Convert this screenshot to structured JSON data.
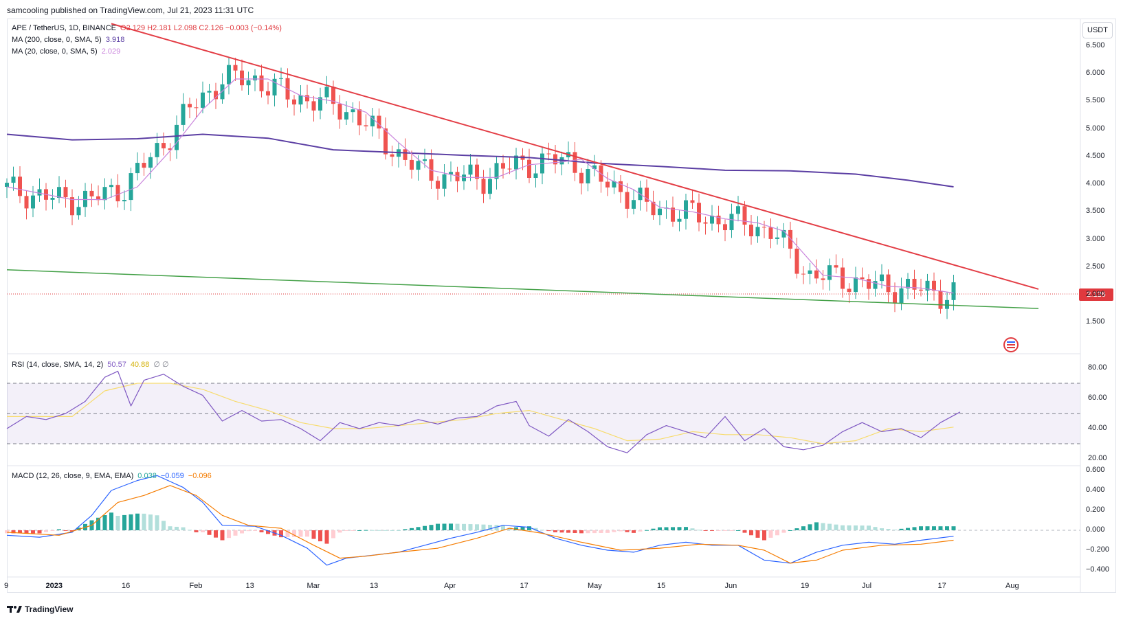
{
  "header": {
    "text": "samcooling published on TradingView.com, Jul 21, 2023 11:31 UTC"
  },
  "legend": {
    "symbol": "APE / TetherUS, 1D, BINANCE",
    "ohlc": "O2.129  H2.181  L2.098  C2.126  −0.003 (−0.14%)",
    "ma200_label": "MA (200, close, 0, SMA, 5)",
    "ma200_value": "3.918",
    "ma20_label": "MA (20, close, 0, SMA, 5)",
    "ma20_value": "2.029",
    "rsi_label": "RSI (14, close, SMA, 14, 2)",
    "rsi_value": "50.57",
    "rsi_ma_value": "40.88",
    "rsi_extra": "∅ ∅",
    "macd_label": "MACD (12, 26, close, 9, EMA, EMA)",
    "macd_hist": "0.038",
    "macd_line": "−0.059",
    "macd_signal": "−0.096"
  },
  "unit_button": "USDT",
  "last_price": "2.126",
  "branding": "TradingView",
  "colors": {
    "up": "#26a69a",
    "down": "#ef5350",
    "ma200": "#5b3ea3",
    "ma20": "#c983dc",
    "trend": "#e33d45",
    "support": "#43a047",
    "rsi": "#7e57c2",
    "rsi_ma": "#f7dc6f",
    "macd": "#2962ff",
    "signal": "#f57c00"
  },
  "chart_data": {
    "type": "candlestick",
    "price_axis": [
      "6.500",
      "6.000",
      "5.500",
      "5.000",
      "4.500",
      "4.000",
      "3.500",
      "3.000",
      "2.500",
      "2.000",
      "1.500"
    ],
    "rsi_axis": [
      "80.00",
      "60.00",
      "40.00",
      "20.00"
    ],
    "macd_axis": [
      "0.600",
      "0.400",
      "0.200",
      "0.000",
      "−0.200",
      "−0.400"
    ],
    "time_axis": [
      "9",
      "2023",
      "16",
      "Feb",
      "13",
      "Mar",
      "13",
      "Apr",
      "17",
      "May",
      "15",
      "Jun",
      "19",
      "Jul",
      "17",
      "Aug"
    ],
    "ma200": [
      [
        0,
        4.9
      ],
      [
        10,
        4.8
      ],
      [
        20,
        4.82
      ],
      [
        30,
        4.9
      ],
      [
        40,
        4.83
      ],
      [
        50,
        4.62
      ],
      [
        60,
        4.57
      ],
      [
        70,
        4.52
      ],
      [
        80,
        4.48
      ],
      [
        90,
        4.38
      ],
      [
        100,
        4.32
      ],
      [
        110,
        4.25
      ],
      [
        120,
        4.24
      ],
      [
        130,
        4.18
      ],
      [
        138,
        4.07
      ],
      [
        145,
        3.95
      ]
    ],
    "ma20": [
      [
        0,
        3.95
      ],
      [
        10,
        3.72
      ],
      [
        15,
        3.72
      ],
      [
        20,
        3.95
      ],
      [
        25,
        4.6
      ],
      [
        30,
        5.35
      ],
      [
        35,
        5.9
      ],
      [
        40,
        5.9
      ],
      [
        45,
        5.6
      ],
      [
        50,
        5.5
      ],
      [
        55,
        5.3
      ],
      [
        60,
        4.75
      ],
      [
        65,
        4.25
      ],
      [
        70,
        4.12
      ],
      [
        75,
        4.12
      ],
      [
        80,
        4.35
      ],
      [
        85,
        4.4
      ],
      [
        88,
        4.45
      ],
      [
        92,
        4.1
      ],
      [
        96,
        3.9
      ],
      [
        100,
        3.58
      ],
      [
        105,
        3.5
      ],
      [
        110,
        3.37
      ],
      [
        115,
        3.3
      ],
      [
        119,
        3.15
      ],
      [
        122,
        2.75
      ],
      [
        125,
        2.35
      ],
      [
        130,
        2.3
      ],
      [
        135,
        2.15
      ],
      [
        140,
        2.12
      ],
      [
        145,
        2.03
      ]
    ],
    "trendline": [
      [
        16,
        6.9
      ],
      [
        158,
        2.1
      ]
    ],
    "support": [
      [
        0,
        2.45
      ],
      [
        158,
        1.75
      ]
    ],
    "rsi": [
      [
        0,
        40
      ],
      [
        3,
        48
      ],
      [
        6,
        46
      ],
      [
        9,
        50
      ],
      [
        12,
        58
      ],
      [
        15,
        74
      ],
      [
        17,
        78
      ],
      [
        19,
        55
      ],
      [
        21,
        72
      ],
      [
        24,
        76
      ],
      [
        27,
        68
      ],
      [
        30,
        62
      ],
      [
        33,
        45
      ],
      [
        36,
        52
      ],
      [
        39,
        45
      ],
      [
        42,
        46
      ],
      [
        45,
        40
      ],
      [
        48,
        32
      ],
      [
        51,
        44
      ],
      [
        54,
        40
      ],
      [
        57,
        44
      ],
      [
        60,
        42
      ],
      [
        63,
        46
      ],
      [
        66,
        43
      ],
      [
        69,
        47
      ],
      [
        72,
        48
      ],
      [
        75,
        55
      ],
      [
        78,
        58
      ],
      [
        80,
        42
      ],
      [
        83,
        35
      ],
      [
        86,
        46
      ],
      [
        89,
        38
      ],
      [
        92,
        28
      ],
      [
        95,
        24
      ],
      [
        98,
        36
      ],
      [
        101,
        42
      ],
      [
        104,
        38
      ],
      [
        107,
        34
      ],
      [
        110,
        48
      ],
      [
        113,
        32
      ],
      [
        116,
        40
      ],
      [
        119,
        28
      ],
      [
        122,
        26
      ],
      [
        125,
        29
      ],
      [
        128,
        38
      ],
      [
        131,
        44
      ],
      [
        134,
        38
      ],
      [
        137,
        40
      ],
      [
        140,
        34
      ],
      [
        143,
        44
      ],
      [
        146,
        51
      ]
    ],
    "rsi_ma": [
      [
        0,
        48
      ],
      [
        10,
        48
      ],
      [
        15,
        65
      ],
      [
        20,
        70
      ],
      [
        25,
        70
      ],
      [
        30,
        66
      ],
      [
        35,
        58
      ],
      [
        40,
        52
      ],
      [
        45,
        44
      ],
      [
        50,
        40
      ],
      [
        55,
        40
      ],
      [
        60,
        42
      ],
      [
        65,
        44
      ],
      [
        70,
        46
      ],
      [
        75,
        50
      ],
      [
        80,
        52
      ],
      [
        85,
        46
      ],
      [
        90,
        40
      ],
      [
        95,
        32
      ],
      [
        100,
        33
      ],
      [
        105,
        38
      ],
      [
        110,
        36
      ],
      [
        115,
        36
      ],
      [
        120,
        34
      ],
      [
        125,
        30
      ],
      [
        130,
        32
      ],
      [
        135,
        40
      ],
      [
        140,
        38
      ],
      [
        145,
        41
      ]
    ],
    "macd": [
      [
        0,
        -0.05
      ],
      [
        5,
        -0.07
      ],
      [
        10,
        -0.02
      ],
      [
        13,
        0.15
      ],
      [
        16,
        0.4
      ],
      [
        20,
        0.5
      ],
      [
        23,
        0.55
      ],
      [
        27,
        0.43
      ],
      [
        30,
        0.28
      ],
      [
        33,
        0.05
      ],
      [
        38,
        0.04
      ],
      [
        42,
        -0.05
      ],
      [
        46,
        -0.18
      ],
      [
        49,
        -0.35
      ],
      [
        52,
        -0.28
      ],
      [
        56,
        -0.25
      ],
      [
        60,
        -0.22
      ],
      [
        64,
        -0.15
      ],
      [
        68,
        -0.08
      ],
      [
        72,
        -0.02
      ],
      [
        76,
        0.05
      ],
      [
        80,
        0.03
      ],
      [
        84,
        -0.08
      ],
      [
        88,
        -0.15
      ],
      [
        92,
        -0.2
      ],
      [
        96,
        -0.22
      ],
      [
        100,
        -0.15
      ],
      [
        104,
        -0.12
      ],
      [
        108,
        -0.15
      ],
      [
        112,
        -0.15
      ],
      [
        116,
        -0.3
      ],
      [
        120,
        -0.33
      ],
      [
        124,
        -0.22
      ],
      [
        128,
        -0.15
      ],
      [
        132,
        -0.12
      ],
      [
        136,
        -0.14
      ],
      [
        140,
        -0.1
      ],
      [
        145,
        -0.06
      ]
    ],
    "signal": [
      [
        0,
        -0.02
      ],
      [
        8,
        -0.05
      ],
      [
        13,
        0.05
      ],
      [
        17,
        0.28
      ],
      [
        21,
        0.35
      ],
      [
        25,
        0.45
      ],
      [
        29,
        0.35
      ],
      [
        33,
        0.15
      ],
      [
        37,
        0.05
      ],
      [
        42,
        0.02
      ],
      [
        47,
        -0.15
      ],
      [
        51,
        -0.28
      ],
      [
        55,
        -0.26
      ],
      [
        60,
        -0.22
      ],
      [
        66,
        -0.18
      ],
      [
        72,
        -0.08
      ],
      [
        77,
        0.02
      ],
      [
        82,
        -0.03
      ],
      [
        88,
        -0.12
      ],
      [
        94,
        -0.2
      ],
      [
        100,
        -0.18
      ],
      [
        106,
        -0.14
      ],
      [
        112,
        -0.15
      ],
      [
        116,
        -0.2
      ],
      [
        120,
        -0.33
      ],
      [
        124,
        -0.3
      ],
      [
        128,
        -0.2
      ],
      [
        134,
        -0.15
      ],
      [
        140,
        -0.14
      ],
      [
        145,
        -0.1
      ]
    ]
  }
}
